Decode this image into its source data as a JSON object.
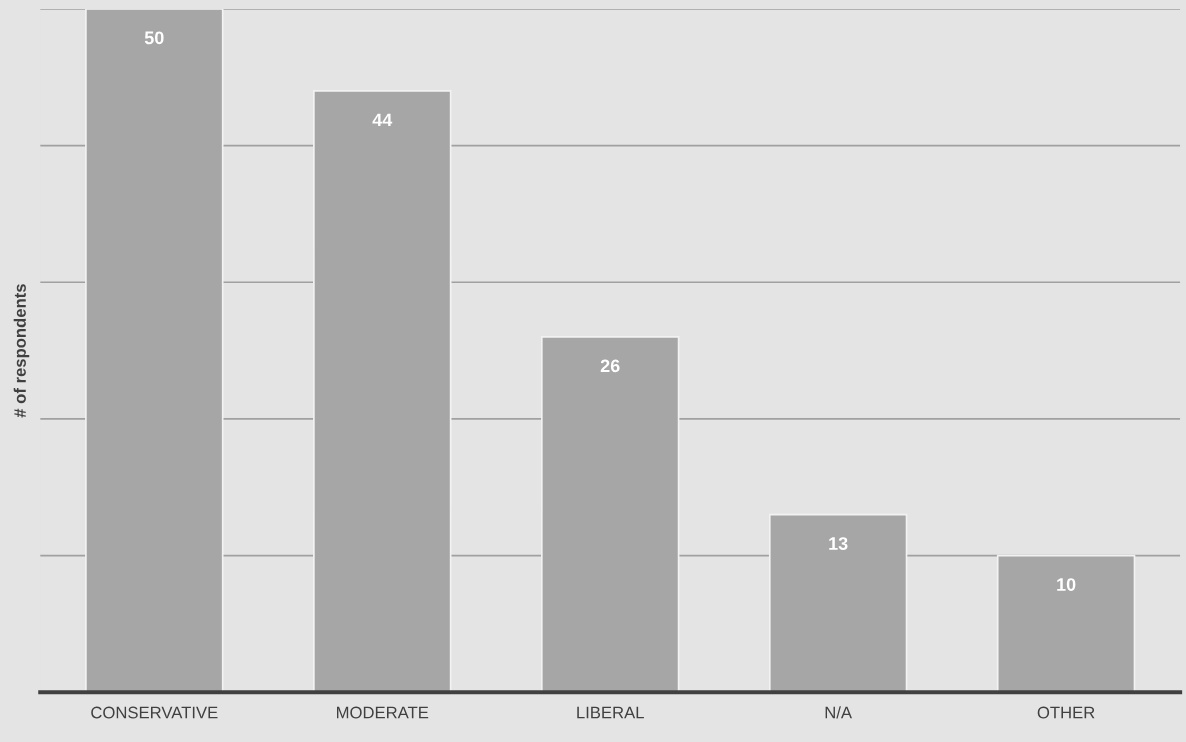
{
  "chart_data": {
    "type": "bar",
    "categories": [
      "CONSERVATIVE",
      "MODERATE",
      "LIBERAL",
      "N/A",
      "OTHER"
    ],
    "values": [
      50,
      44,
      26,
      13,
      10
    ],
    "color": "#a6a6a6",
    "ylabel": "# of respondents",
    "ylim": [
      0,
      50
    ],
    "yticks": [
      {
        "value": 0,
        "label": null
      },
      {
        "value": 10,
        "label": null
      },
      {
        "value": 20,
        "label": null
      },
      {
        "value": 30,
        "label": null
      },
      {
        "value": 40,
        "label": null
      },
      {
        "value": 50,
        "label": null
      }
    ],
    "grid": "y",
    "data_labels": true,
    "tick_labels": "x"
  }
}
